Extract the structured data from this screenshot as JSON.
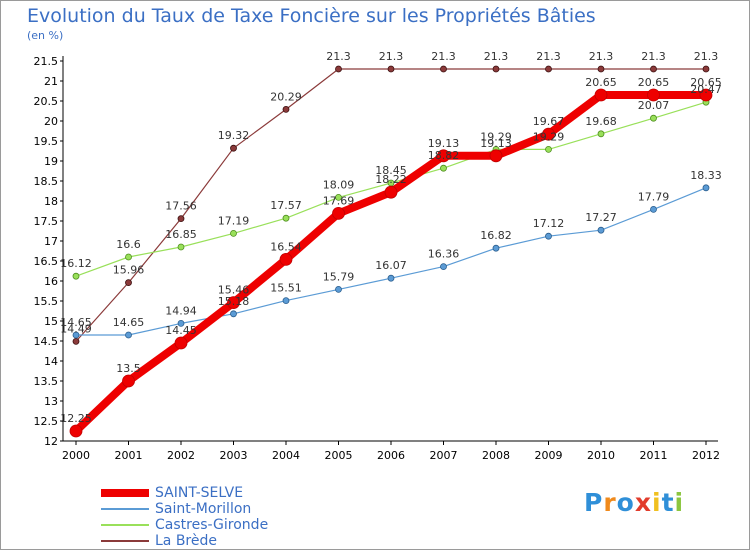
{
  "header": {
    "title": "Evolution du Taux de Taxe Foncière sur les Propriétés Bâties",
    "subtitle": "(en %)"
  },
  "logo": {
    "text": "Proxiti",
    "colors": [
      "#2f8fd8",
      "#f08a1c",
      "#2f8fd8",
      "#e23c2c",
      "#f0c020",
      "#2f8fd8",
      "#8cc63f"
    ]
  },
  "legend": {
    "items": [
      {
        "label": "SAINT-SELVE"
      },
      {
        "label": "Saint-Morillon"
      },
      {
        "label": "Castres-Gironde"
      },
      {
        "label": "La Brède"
      }
    ]
  },
  "chart_data": {
    "type": "line",
    "title": "Evolution du Taux de Taxe Foncière sur les Propriétés Bâties",
    "ylabel": "(en %)",
    "xlabel": "",
    "categories": [
      "2000",
      "2001",
      "2002",
      "2003",
      "2004",
      "2005",
      "2006",
      "2007",
      "2008",
      "2009",
      "2010",
      "2011",
      "2012"
    ],
    "ylim": [
      12,
      21.5
    ],
    "ytick_step": 0.5,
    "grid": false,
    "legend_position": "bottom-left",
    "series": [
      {
        "name": "SAINT-SELVE",
        "color": "#ee0000",
        "values": [
          12.25,
          13.5,
          14.45,
          15.46,
          16.54,
          17.69,
          18.22,
          19.13,
          19.13,
          19.67,
          20.65,
          20.65,
          20.65
        ],
        "labels": [
          "12.25",
          "13.5",
          "14.45",
          "15.46",
          "16.54",
          "17.69",
          "18.22",
          "19.13",
          "19.13",
          "19.67",
          "20.65",
          "20.65",
          "20.65"
        ]
      },
      {
        "name": "Saint-Morillon",
        "color": "#5b9bd5",
        "values": [
          14.65,
          14.65,
          14.94,
          15.18,
          15.51,
          15.79,
          16.07,
          16.36,
          16.82,
          17.12,
          17.27,
          17.79,
          18.33
        ],
        "labels": [
          "14.65",
          "14.65",
          "14.94",
          "15.18",
          "15.51",
          "15.79",
          "16.07",
          "16.36",
          "16.82",
          "17.12",
          "17.27",
          "17.79",
          "18.33"
        ]
      },
      {
        "name": "Castres-Gironde",
        "color": "#99e05a",
        "values": [
          16.12,
          16.6,
          16.85,
          17.19,
          17.57,
          18.09,
          18.45,
          18.82,
          19.29,
          19.29,
          19.68,
          20.07,
          20.47
        ],
        "labels": [
          "16.12",
          "16.6",
          "16.85",
          "17.19",
          "17.57",
          "18.09",
          "18.45",
          "18.82",
          "19.29",
          "19.29",
          "19.68",
          "20.07",
          "20.47"
        ]
      },
      {
        "name": "La Brède",
        "color": "#8b3a3a",
        "values": [
          14.49,
          15.96,
          17.56,
          19.32,
          20.29,
          21.3,
          21.3,
          21.3,
          21.3,
          21.3,
          21.3,
          21.3,
          21.3
        ],
        "labels": [
          "14.49",
          "15.96",
          "17.56",
          "19.32",
          "20.29",
          "21.3",
          "21.3",
          "21.3",
          "21.3",
          "21.3",
          "21.3",
          "21.3",
          "21.3"
        ]
      }
    ]
  }
}
